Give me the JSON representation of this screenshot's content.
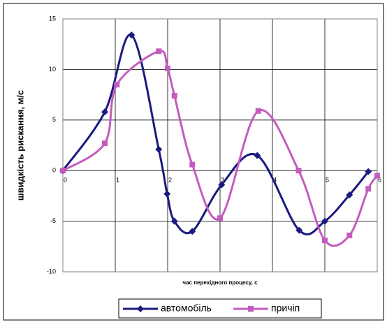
{
  "chart_data": {
    "type": "line",
    "y_label": "швидкість рискання, м/с",
    "x_label": "час перехідного процесу, с",
    "xlim": [
      0,
      6
    ],
    "xticks": [
      0,
      1,
      2,
      3,
      4,
      5,
      6
    ],
    "ylim": [
      -10,
      15
    ],
    "yticks": [
      -10,
      -5,
      0,
      5,
      10,
      15
    ],
    "grid": true,
    "legend": "bottom",
    "series": [
      {
        "name": "автомобіль",
        "color": "#1a1a80",
        "marker": "diamond",
        "x": [
          0,
          0.8,
          1.31,
          1.83,
          1.99,
          2.13,
          2.47,
          3.03,
          3.71,
          4.51,
          5.0,
          5.47,
          5.83
        ],
        "values": [
          0,
          5.8,
          13.4,
          2.1,
          -2.3,
          -5.0,
          -6.0,
          -1.4,
          1.5,
          -5.9,
          -5.0,
          -2.4,
          -0.1
        ]
      },
      {
        "name": "причіп",
        "color": "#c45cbf",
        "marker": "square",
        "x": [
          0,
          0.8,
          1.03,
          1.83,
          2.0,
          2.13,
          2.47,
          3.0,
          3.73,
          4.5,
          5.0,
          5.47,
          5.83,
          6.0
        ],
        "values": [
          0,
          2.7,
          8.5,
          11.8,
          10.1,
          7.4,
          0.6,
          -4.7,
          5.9,
          0,
          -6.9,
          -6.4,
          -1.8,
          -0.5
        ]
      }
    ]
  }
}
